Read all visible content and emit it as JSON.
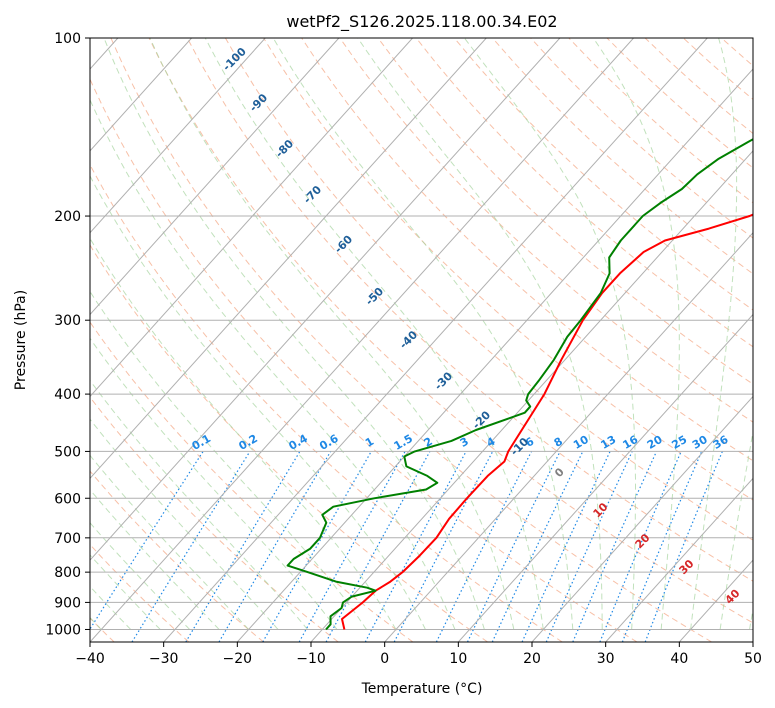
{
  "chart_data": {
    "type": "line",
    "title": "wetPf2_S126.2025.118.00.34.E02",
    "xlabel": "Temperature (°C)",
    "ylabel": "Pressure (hPa)",
    "xlim": [
      -40,
      50
    ],
    "ylim": [
      1050,
      100
    ],
    "y_scale": "log",
    "x_ticks": [
      -40,
      -30,
      -20,
      -10,
      0,
      10,
      20,
      30,
      40,
      50
    ],
    "x_tick_labels": [
      "−40",
      "−30",
      "−20",
      "−10",
      "0",
      "10",
      "20",
      "30",
      "40",
      "50"
    ],
    "y_ticks": [
      1000,
      900,
      800,
      700,
      600,
      500,
      400,
      300,
      200,
      100
    ],
    "y_tick_labels": [
      "1000",
      "900",
      "800",
      "700",
      "600",
      "500",
      "400",
      "300",
      "200",
      "100"
    ],
    "grid": true,
    "series": [
      {
        "color": "#ff0000",
        "points": [
          [
            1000,
            -7
          ],
          [
            960,
            -8.6
          ],
          [
            900,
            -7.8
          ],
          [
            860,
            -7.5
          ],
          [
            830,
            -6.6
          ],
          [
            800,
            -6.1
          ],
          [
            750,
            -5.8
          ],
          [
            700,
            -5.7
          ],
          [
            650,
            -6.3
          ],
          [
            600,
            -6.4
          ],
          [
            550,
            -6.3
          ],
          [
            520,
            -5.8
          ],
          [
            500,
            -6.5
          ],
          [
            450,
            -7.5
          ],
          [
            400,
            -8.6
          ],
          [
            350,
            -10.5
          ],
          [
            300,
            -12.4
          ],
          [
            270,
            -13.1
          ],
          [
            250,
            -13.1
          ],
          [
            230,
            -12.5
          ],
          [
            220,
            -11.0
          ],
          [
            210,
            -6.5
          ],
          [
            200,
            -2.5
          ],
          [
            190,
            0.0
          ],
          [
            180,
            1.5
          ],
          [
            170,
            3.2
          ],
          [
            160,
            5.5
          ],
          [
            150,
            8.0
          ],
          [
            140,
            11.0
          ],
          [
            130,
            14.5
          ],
          [
            120,
            18.0
          ],
          [
            110,
            20.5
          ],
          [
            100,
            22.5
          ]
        ]
      },
      {
        "color": "#008000",
        "points": [
          [
            1000,
            -9.5
          ],
          [
            980,
            -9.5
          ],
          [
            950,
            -10.5
          ],
          [
            920,
            -10.0
          ],
          [
            900,
            -10.5
          ],
          [
            880,
            -10.0
          ],
          [
            860,
            -7.5
          ],
          [
            850,
            -9.0
          ],
          [
            830,
            -14
          ],
          [
            800,
            -19
          ],
          [
            780,
            -22.5
          ],
          [
            760,
            -22.5
          ],
          [
            730,
            -21.5
          ],
          [
            700,
            -21.5
          ],
          [
            660,
            -22.5
          ],
          [
            640,
            -24
          ],
          [
            620,
            -23.5
          ],
          [
            600,
            -19
          ],
          [
            580,
            -13
          ],
          [
            565,
            -12.3
          ],
          [
            550,
            -14.5
          ],
          [
            530,
            -18.5
          ],
          [
            510,
            -20
          ],
          [
            500,
            -19.2
          ],
          [
            480,
            -15.5
          ],
          [
            460,
            -13.5
          ],
          [
            440,
            -10.5
          ],
          [
            430,
            -9.0
          ],
          [
            420,
            -9.0
          ],
          [
            410,
            -10.3
          ],
          [
            400,
            -10.8
          ],
          [
            380,
            -11.0
          ],
          [
            350,
            -11.5
          ],
          [
            320,
            -12.5
          ],
          [
            300,
            -12.7
          ],
          [
            270,
            -13.3
          ],
          [
            250,
            -14.5
          ],
          [
            235,
            -16.5
          ],
          [
            220,
            -17
          ],
          [
            200,
            -17
          ],
          [
            190,
            -16.2
          ],
          [
            180,
            -15
          ],
          [
            170,
            -14.7
          ],
          [
            160,
            -13.7
          ],
          [
            150,
            -11.8
          ],
          [
            140,
            -9.5
          ],
          [
            130,
            -6.5
          ],
          [
            120,
            -3.5
          ],
          [
            110,
            -1
          ],
          [
            100,
            0
          ]
        ]
      }
    ],
    "dry_adiabat_labels": [
      "-100",
      "-90",
      "-80",
      "-70",
      "-60",
      "-50",
      "-40",
      "-30",
      "-20",
      "-10",
      "0",
      "10",
      "20",
      "30",
      "40"
    ],
    "mixing_ratio_labels": [
      "0.1",
      "0.2",
      "0.4",
      "0.6",
      "1",
      "1.5",
      "2",
      "3",
      "4",
      "6",
      "8",
      "10",
      "13",
      "16",
      "20",
      "25",
      "30",
      "36"
    ],
    "colors": {
      "temperature": "#ff0000",
      "dewpoint": "#008000",
      "grid": "#b0b0b0",
      "dry_adiabat": "#f4a582",
      "moist_adiabat": "#a6d49f",
      "mixing_ratio": "#1e88e5",
      "dry_label_cold": "#1f5f99",
      "dry_label_zero": "#808080",
      "dry_label_warm": "#d62728",
      "mixing_label": "#1e88e5"
    }
  }
}
